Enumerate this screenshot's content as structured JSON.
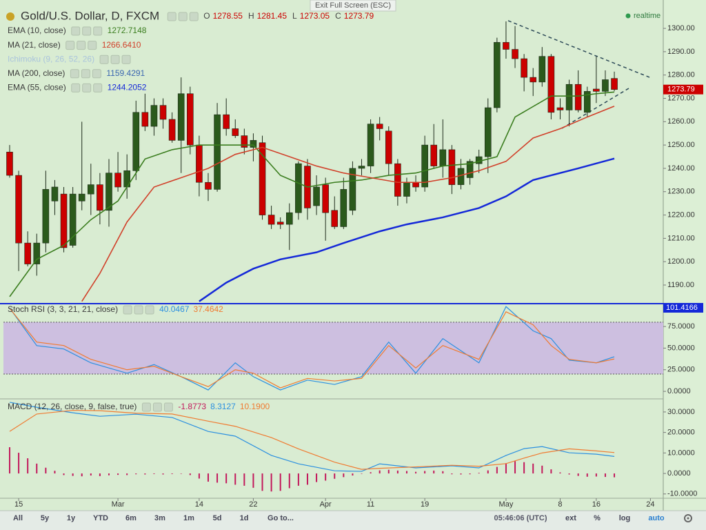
{
  "chart_data": [
    {
      "type": "candlestick",
      "title": "Gold/U.S. Dollar, D, FXCM",
      "ohlc_prefixes": [
        "O",
        "H",
        "L",
        "C"
      ],
      "categories": [
        null,
        "15",
        null,
        null,
        null,
        null,
        null,
        null,
        null,
        null,
        null,
        null,
        "Mar",
        null,
        null,
        null,
        null,
        null,
        null,
        null,
        null,
        "14",
        null,
        null,
        null,
        null,
        null,
        "22",
        null,
        null,
        null,
        null,
        null,
        null,
        null,
        "Apr",
        null,
        null,
        null,
        null,
        "11",
        null,
        null,
        null,
        null,
        null,
        "19",
        null,
        null,
        null,
        null,
        null,
        null,
        null,
        null,
        "May",
        null,
        null,
        null,
        null,
        null,
        "8",
        null,
        null,
        null,
        "16",
        null,
        null,
        null,
        null,
        null,
        "24"
      ],
      "open": [
        1247,
        1237,
        1208,
        1199,
        1208,
        1226,
        1229,
        1207,
        1226,
        1229,
        1233,
        1222,
        1238,
        1232,
        1239,
        1264,
        1258,
        1267,
        1261,
        1252,
        1272,
        1250,
        1234,
        1231,
        1263,
        1257,
        1254,
        1249,
        1251,
        1220,
        1217,
        1216,
        1221,
        1241,
        1224,
        1233,
        1222,
        1215,
        1222,
        1240,
        1241,
        1259,
        1256,
        1242,
        1228,
        1234,
        1232,
        1250,
        1241,
        1248,
        1233,
        1236,
        1242,
        1245,
        1266,
        1294,
        1291,
        1287,
        1279,
        1277,
        1288,
        1266,
        1265,
        1276,
        1264,
        1274,
        1273,
        1278.55,
        null,
        null,
        null,
        null
      ],
      "high": [
        1250,
        1239,
        1213,
        1212,
        1239,
        1235,
        1232,
        1232,
        1260,
        1242,
        1238,
        1244,
        1247,
        1246,
        1269,
        1272,
        1270,
        1270,
        1264,
        1279,
        1275,
        1254,
        1238,
        1268,
        1270,
        1261,
        1257,
        1255,
        1254,
        1224,
        1219,
        1225,
        1243,
        1244,
        1237,
        1236,
        1228,
        1236,
        1243,
        1244,
        1261,
        1262,
        1258,
        1244,
        1236,
        1237,
        1254,
        1259,
        1261,
        1250,
        1244,
        1244,
        1248,
        1270,
        1296,
        1303,
        1301,
        1289,
        1283,
        1292,
        1289,
        1270,
        1278,
        1282,
        1275,
        1288,
        1282,
        1281.45,
        null,
        null,
        null,
        null
      ],
      "low": [
        1236,
        1196,
        1198,
        1194,
        1204,
        1220,
        1204,
        1206,
        1222,
        1220,
        1216,
        1215,
        1230,
        1227,
        1235,
        1256,
        1254,
        1257,
        1251,
        1238,
        1246,
        1228,
        1226,
        1230,
        1254,
        1253,
        1246,
        1243,
        1218,
        1214,
        1214,
        1205,
        1218,
        1218,
        1220,
        1209,
        1214,
        1214,
        1220,
        1237,
        1238,
        1252,
        1237,
        1224,
        1225,
        1230,
        1230,
        1240,
        1236,
        1229,
        1231,
        1233,
        1238,
        1238,
        1264,
        1287,
        1283,
        1273,
        1271,
        1275,
        1261,
        1261,
        1258,
        1264,
        1262,
        1268,
        1271,
        1273.05,
        null,
        null,
        null,
        null
      ],
      "close": [
        1237,
        1208,
        1199,
        1208,
        1231,
        1232,
        1206,
        1229,
        1229,
        1233,
        1222,
        1238,
        1232,
        1239,
        1264,
        1258,
        1267,
        1261,
        1252,
        1272,
        1250,
        1234,
        1231,
        1263,
        1257,
        1254,
        1249,
        1252,
        1220,
        1216,
        1216,
        1221,
        1242,
        1223,
        1232,
        1221,
        1215,
        1231,
        1240,
        1241,
        1259,
        1257,
        1242,
        1228,
        1234,
        1232,
        1250,
        1241,
        1248,
        1233,
        1240,
        1243,
        1245,
        1266,
        1294,
        1291,
        1287,
        1279,
        1277,
        1288,
        1264,
        1265,
        1276,
        1265,
        1273,
        1273,
        1278,
        1273.79,
        null,
        null,
        null,
        null
      ],
      "up_color": "#2b5a1c",
      "down_color": "#cc0000",
      "ylim": [
        1182.9,
        1309.2
      ],
      "yticks": [
        {
          "value": 1190,
          "label": "1190.00"
        },
        {
          "value": 1200,
          "label": "1200.00"
        },
        {
          "value": 1210,
          "label": "1210.00"
        },
        {
          "value": 1220,
          "label": "1220.00"
        },
        {
          "value": 1230,
          "label": "1230.00"
        },
        {
          "value": 1240,
          "label": "1240.00"
        },
        {
          "value": 1250,
          "label": "1250.00"
        },
        {
          "value": 1260,
          "label": "1260.00"
        },
        {
          "value": 1270,
          "label": "1270.00"
        },
        {
          "value": 1280,
          "label": "1280.00"
        },
        {
          "value": 1290,
          "label": "1290.00"
        },
        {
          "value": 1300,
          "label": "1300.00"
        }
      ],
      "overlays": [
        {
          "name": "EMA (10, close)",
          "color": "#3a7d1e",
          "x": [
            0,
            3,
            6,
            9,
            12,
            15,
            18,
            21,
            24,
            27,
            30,
            33,
            36,
            39,
            42,
            45,
            48,
            51,
            54,
            56,
            60,
            63,
            65,
            67
          ],
          "values": [
            1185,
            1201,
            1207,
            1218,
            1226,
            1244,
            1248,
            1250,
            1250,
            1250,
            1237,
            1232,
            1234,
            1235,
            1237,
            1238,
            1241,
            1242,
            1245,
            1262,
            1271,
            1271,
            1272,
            1272.7148
          ]
        },
        {
          "name": "MA (21, close)",
          "color": "#d1402a",
          "x": [
            8,
            10,
            13,
            16,
            19,
            22,
            25,
            28,
            31,
            34,
            37,
            40,
            43,
            46,
            49,
            52,
            55,
            58,
            61,
            64,
            67
          ],
          "values": [
            1183,
            1195,
            1217,
            1232,
            1236,
            1240,
            1246,
            1249,
            1245,
            1241,
            1238,
            1236,
            1234,
            1234,
            1236,
            1239,
            1243,
            1253,
            1257,
            1262,
            1266.641
          ],
          "value_label": "1266.6410"
        },
        {
          "name": "Ichimoku (9, 26, 52, 26)",
          "hidden": true
        },
        {
          "name": "MA (200, close)",
          "color": "#3a66b0",
          "x": [
            67
          ],
          "values": [
            1159.4291
          ]
        },
        {
          "name": "EMA (55, close)",
          "color": "#1428d8",
          "x": [
            21,
            24,
            27,
            30,
            34,
            37,
            41,
            44,
            48,
            52,
            55,
            58,
            60,
            63,
            67
          ],
          "values": [
            1183,
            1191,
            1197,
            1201,
            1204,
            1208,
            1213,
            1216,
            1219,
            1223,
            1228,
            1235,
            1237,
            1240,
            1244.2052
          ]
        }
      ]
    },
    {
      "type": "line",
      "title": "Stoch RSI (3, 3, 21, 21, close)",
      "x": [
        0,
        3,
        6,
        9,
        13,
        16,
        19,
        22,
        25,
        27,
        30,
        33,
        36,
        39,
        42,
        45,
        48,
        52,
        55,
        58,
        60,
        62,
        65,
        67
      ],
      "series": [
        {
          "name": "K",
          "color": "#2a8fe0",
          "values": [
            96.3,
            52.9,
            49,
            33,
            21,
            31,
            17,
            1.6,
            33,
            17,
            1.6,
            13,
            8,
            17,
            57,
            21,
            61,
            33,
            98,
            70,
            61,
            36,
            33,
            40.0467
          ]
        },
        {
          "name": "D",
          "color": "#f07a30",
          "values": [
            96,
            57,
            53,
            37,
            25,
            29,
            17,
            5.5,
            25,
            21,
            4,
            15,
            12,
            15,
            53,
            27,
            53,
            37,
            92,
            77,
            53,
            37,
            33,
            37.4642
          ]
        }
      ],
      "band": [
        20,
        80
      ],
      "band_color": "#cdbfe0",
      "top_line": 101.4166,
      "top_line_color": "#1428d8",
      "ylim": [
        -8.7,
        101.4166
      ],
      "yticks": [
        {
          "value": 0,
          "label": "0.0000"
        },
        {
          "value": 25,
          "label": "25.0000"
        },
        {
          "value": 50,
          "label": "50.0000"
        },
        {
          "value": 75,
          "label": "75.0000"
        }
      ]
    },
    {
      "type": "macd",
      "title": "MACD (12, 26, close, 9, false, true)",
      "histogram": [
        12.8,
        10.1,
        7.4,
        4.8,
        2.8,
        1.3,
        -0.8,
        -1.2,
        -1.4,
        -1.0,
        -1.3,
        -0.9,
        -0.7,
        -0.8,
        -0.4,
        -0.5,
        -0.3,
        -0.5,
        -0.3,
        -0.2,
        -0.8,
        -2.5,
        -4.0,
        -4.5,
        -4.8,
        -5.5,
        -6.0,
        -7.0,
        -8.5,
        -8.8,
        -8.5,
        -7.2,
        -6.0,
        -5.5,
        -4.2,
        -3.5,
        -2.6,
        -1.8,
        -1.0,
        -0.2,
        0.6,
        1.5,
        1.8,
        1.4,
        1.2,
        0.8,
        1.2,
        1.4,
        1.1,
        -0.4,
        -0.5,
        -0.4,
        0.3,
        1.5,
        3.2,
        5.0,
        6.0,
        5.5,
        4.8,
        3.8,
        2.0,
        0.5,
        -0.5,
        -1.2,
        -1.6,
        -1.5,
        -1.7,
        -1.8773
      ],
      "histogram_color": "#c2185b",
      "x": [
        0,
        3,
        7,
        10,
        14,
        18,
        22,
        25,
        29,
        32,
        36,
        39,
        41,
        45,
        49,
        52,
        55,
        57,
        59,
        62,
        65,
        67
      ],
      "series": [
        {
          "name": "MACD",
          "color": "#2a8fe0",
          "values": [
            34.7,
            32.3,
            29.6,
            27.9,
            28.9,
            27.3,
            20.5,
            18.2,
            8.8,
            4.7,
            1.3,
            1.0,
            4.7,
            2.7,
            3.7,
            2.7,
            8.8,
            12.1,
            13.1,
            10.1,
            9.4,
            8.3127
          ]
        },
        {
          "name": "Signal",
          "color": "#f07a30",
          "values": [
            20.5,
            29.0,
            30.8,
            30.6,
            29.4,
            29.0,
            25.5,
            23.0,
            17.5,
            12.0,
            5.5,
            2.0,
            2.5,
            3.2,
            4.0,
            3.5,
            4.8,
            7.5,
            10.0,
            12.0,
            11.0,
            10.19
          ],
          "value_label": "10.1900"
        }
      ],
      "ylim": [
        -12.1,
        35.7
      ],
      "yticks": [
        {
          "value": -10,
          "label": "-10.0000"
        },
        {
          "value": 0,
          "label": "0.0000"
        },
        {
          "value": 10,
          "label": "10.0000"
        },
        {
          "value": 20,
          "label": "20.0000"
        },
        {
          "value": 30,
          "label": "30.0000"
        }
      ]
    }
  ],
  "banner": "Exit Full Screen (ESC)",
  "status": "realtime",
  "toolbar": {
    "ranges": [
      "All",
      "5y",
      "1y",
      "YTD",
      "6m",
      "3m",
      "1m",
      "5d",
      "1d",
      "Go to..."
    ],
    "time": "05:46:06 (UTC)",
    "options": [
      "ext",
      "%",
      "log",
      "auto"
    ]
  }
}
